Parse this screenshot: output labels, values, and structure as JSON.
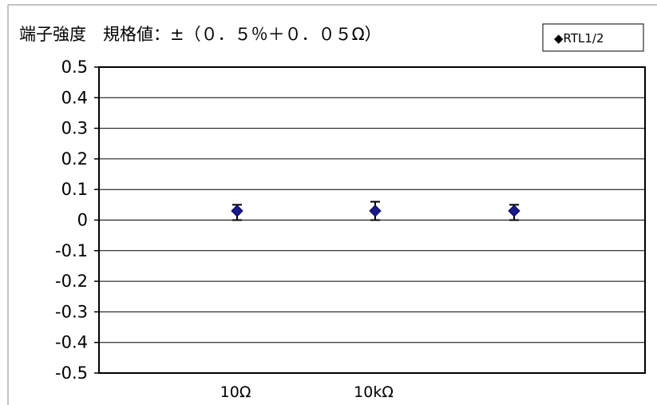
{
  "chart_data": {
    "type": "scatter",
    "title": "端子強度　規格値：±（０．５％＋０．０５Ω）",
    "xlabel": "",
    "ylabel": "",
    "ylim": [
      -0.5,
      0.5
    ],
    "yticks": [
      "0.5",
      "0.4",
      "0.3",
      "0.2",
      "0.1",
      "0",
      "-0.1",
      "-0.2",
      "-0.3",
      "-0.4",
      "-0.5"
    ],
    "ytick_values": [
      0.5,
      0.4,
      0.3,
      0.2,
      0.1,
      0,
      -0.1,
      -0.2,
      -0.3,
      -0.4,
      -0.5
    ],
    "categories": [
      "10Ω",
      "10kΩ",
      ""
    ],
    "grid": true,
    "legend": {
      "position": "top-right",
      "entries": [
        "◆RTL1/2"
      ]
    },
    "series": [
      {
        "name": "RTL1/2",
        "color": "#1a1a8c",
        "marker": "diamond",
        "points": [
          {
            "category": "10Ω",
            "y": 0.03,
            "ymin": 0.0,
            "ymax": 0.05
          },
          {
            "category": "10kΩ",
            "y": 0.03,
            "ymin": 0.0,
            "ymax": 0.06
          },
          {
            "category": "",
            "y": 0.03,
            "ymin": 0.0,
            "ymax": 0.05
          }
        ]
      }
    ]
  }
}
